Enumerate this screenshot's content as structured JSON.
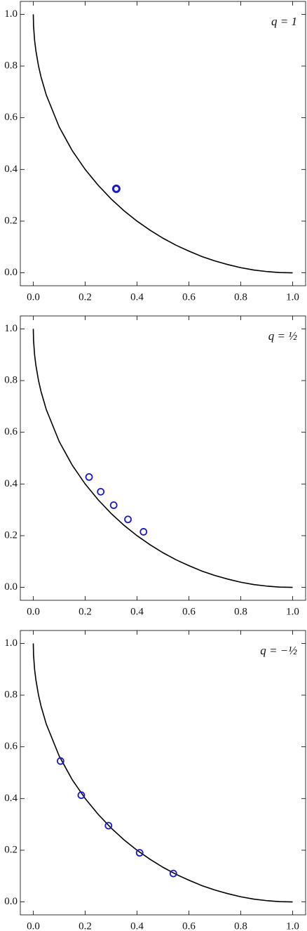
{
  "chart_data": [
    {
      "type": "scatter",
      "title": "q = 1",
      "curve": {
        "color": "#000000",
        "x": [
          0,
          0.001,
          0.005,
          0.01,
          0.02,
          0.03,
          0.05,
          0.1,
          0.15,
          0.2,
          0.25,
          0.3,
          0.35,
          0.4,
          0.45,
          0.5,
          0.55,
          0.6,
          0.65,
          0.7,
          0.75,
          0.8,
          0.85,
          0.9,
          0.95,
          1
        ],
        "y": [
          1,
          0.955,
          0.9,
          0.859,
          0.801,
          0.757,
          0.688,
          0.564,
          0.473,
          0.4,
          0.339,
          0.286,
          0.24,
          0.2,
          0.165,
          0.134,
          0.107,
          0.084,
          0.063,
          0.046,
          0.032,
          0.02,
          0.011,
          0.005,
          0.001,
          0
        ]
      },
      "points": {
        "color": "#1a1acc",
        "x": [
          0.32
        ],
        "y": [
          0.325
        ]
      },
      "xlim": [
        -0.05,
        1.05
      ],
      "ylim": [
        -0.05,
        1.05
      ],
      "xticks": [
        {
          "value": 0,
          "label": "0.0"
        },
        {
          "value": 0.2,
          "label": "0.2"
        },
        {
          "value": 0.4,
          "label": "0.4"
        },
        {
          "value": 0.6,
          "label": "0.6"
        },
        {
          "value": 0.8,
          "label": "0.8"
        },
        {
          "value": 1,
          "label": "1.0"
        }
      ],
      "yticks": [
        {
          "value": 0,
          "label": "0.0"
        },
        {
          "value": 0.2,
          "label": "0.2"
        },
        {
          "value": 0.4,
          "label": "0.4"
        },
        {
          "value": 0.6,
          "label": "0.6"
        },
        {
          "value": 0.8,
          "label": "0.8"
        },
        {
          "value": 1,
          "label": "1.0"
        }
      ]
    },
    {
      "type": "scatter",
      "title": "q = ½",
      "curve": {
        "color": "#000000",
        "x": [
          0,
          0.001,
          0.005,
          0.01,
          0.02,
          0.03,
          0.05,
          0.1,
          0.15,
          0.2,
          0.25,
          0.3,
          0.35,
          0.4,
          0.45,
          0.5,
          0.55,
          0.6,
          0.65,
          0.7,
          0.75,
          0.8,
          0.85,
          0.9,
          0.95,
          1
        ],
        "y": [
          1,
          0.955,
          0.9,
          0.859,
          0.801,
          0.757,
          0.688,
          0.564,
          0.473,
          0.4,
          0.339,
          0.286,
          0.24,
          0.2,
          0.165,
          0.134,
          0.107,
          0.084,
          0.063,
          0.046,
          0.032,
          0.02,
          0.011,
          0.005,
          0.001,
          0
        ]
      },
      "points": {
        "color": "#1a1acc",
        "x": [
          0.215,
          0.26,
          0.31,
          0.365,
          0.425
        ],
        "y": [
          0.427,
          0.37,
          0.318,
          0.263,
          0.215
        ]
      },
      "xlim": [
        -0.05,
        1.05
      ],
      "ylim": [
        -0.05,
        1.05
      ],
      "xticks": [
        {
          "value": 0,
          "label": "0.0"
        },
        {
          "value": 0.2,
          "label": "0.2"
        },
        {
          "value": 0.4,
          "label": "0.4"
        },
        {
          "value": 0.6,
          "label": "0.6"
        },
        {
          "value": 0.8,
          "label": "0.8"
        },
        {
          "value": 1,
          "label": "1.0"
        }
      ],
      "yticks": [
        {
          "value": 0,
          "label": "0.0"
        },
        {
          "value": 0.2,
          "label": "0.2"
        },
        {
          "value": 0.4,
          "label": "0.4"
        },
        {
          "value": 0.6,
          "label": "0.6"
        },
        {
          "value": 0.8,
          "label": "0.8"
        },
        {
          "value": 1,
          "label": "1.0"
        }
      ]
    },
    {
      "type": "scatter",
      "title": "q = −½",
      "curve": {
        "color": "#000000",
        "x": [
          0,
          0.001,
          0.005,
          0.01,
          0.02,
          0.03,
          0.05,
          0.1,
          0.15,
          0.2,
          0.25,
          0.3,
          0.35,
          0.4,
          0.45,
          0.5,
          0.55,
          0.6,
          0.65,
          0.7,
          0.75,
          0.8,
          0.85,
          0.9,
          0.95,
          1
        ],
        "y": [
          1,
          0.955,
          0.9,
          0.859,
          0.801,
          0.757,
          0.688,
          0.564,
          0.473,
          0.4,
          0.339,
          0.286,
          0.24,
          0.2,
          0.165,
          0.134,
          0.107,
          0.084,
          0.063,
          0.046,
          0.032,
          0.02,
          0.011,
          0.005,
          0.001,
          0
        ]
      },
      "points": {
        "color": "#1a1acc",
        "x": [
          0.105,
          0.185,
          0.29,
          0.41,
          0.54
        ],
        "y": [
          0.545,
          0.413,
          0.295,
          0.19,
          0.11
        ]
      },
      "xlim": [
        -0.05,
        1.05
      ],
      "ylim": [
        -0.05,
        1.05
      ],
      "xticks": [
        {
          "value": 0,
          "label": "0.0"
        },
        {
          "value": 0.2,
          "label": "0.2"
        },
        {
          "value": 0.4,
          "label": "0.4"
        },
        {
          "value": 0.6,
          "label": "0.6"
        },
        {
          "value": 0.8,
          "label": "0.8"
        },
        {
          "value": 1,
          "label": "1.0"
        }
      ],
      "yticks": [
        {
          "value": 0,
          "label": "0.0"
        },
        {
          "value": 0.2,
          "label": "0.2"
        },
        {
          "value": 0.4,
          "label": "0.4"
        },
        {
          "value": 0.6,
          "label": "0.6"
        },
        {
          "value": 0.8,
          "label": "0.8"
        },
        {
          "value": 1,
          "label": "1.0"
        }
      ]
    }
  ]
}
